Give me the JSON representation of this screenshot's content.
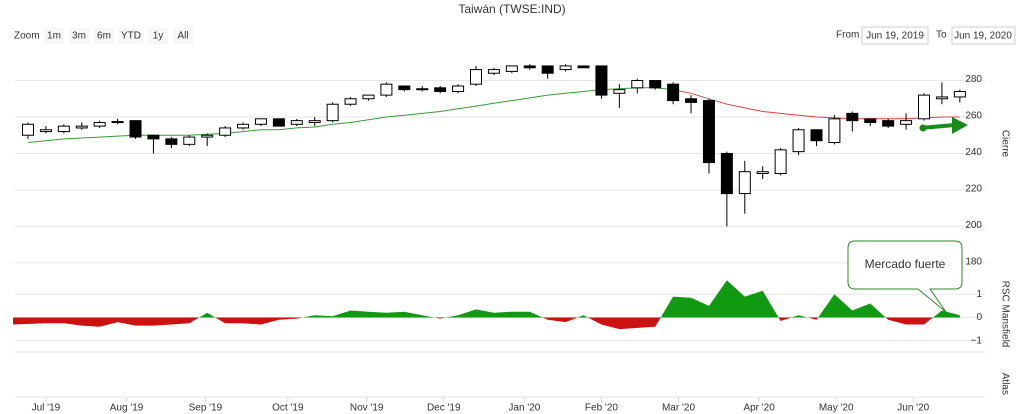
{
  "header": {
    "title": "Taiwán (TWSE:IND)",
    "zoom_label": "Zoom",
    "zoom_buttons": [
      "1m",
      "3m",
      "6m",
      "YTD",
      "1y",
      "All"
    ],
    "from_label": "From",
    "from_value": "Jun 19, 2019",
    "to_label": "To",
    "to_value": "Jun 19, 2020"
  },
  "chart_data": [
    {
      "type": "candlestick",
      "y_label": "Cierre",
      "up_color": "#ffffff",
      "down_color": "#000000",
      "open": [
        250,
        252,
        252,
        254,
        255,
        257,
        258,
        250,
        248,
        245,
        249,
        250,
        254,
        256,
        259,
        256,
        257,
        258,
        267,
        270,
        272,
        277,
        275.5,
        276,
        274,
        278,
        284,
        285,
        288,
        288,
        286,
        288,
        288,
        273,
        276,
        280,
        278,
        270,
        269,
        240,
        218,
        229,
        229,
        241,
        253,
        246,
        262,
        259,
        258,
        256,
        259,
        270,
        271
      ],
      "high": [
        257,
        255,
        256,
        257,
        258,
        259,
        258,
        250,
        249,
        250,
        251,
        255,
        257,
        259,
        259,
        259,
        260,
        268,
        271,
        272,
        279,
        277,
        277,
        277,
        278,
        288,
        287,
        288,
        289,
        288,
        289,
        288,
        288,
        278,
        281,
        280,
        279,
        272,
        270,
        241,
        236,
        233,
        243,
        254,
        253,
        261,
        263,
        259,
        259,
        262,
        273,
        279,
        275
      ],
      "low": [
        248,
        251,
        251,
        253,
        254,
        256,
        248,
        240,
        243,
        244,
        244,
        249,
        253,
        255,
        255,
        255,
        255,
        257,
        266,
        269,
        271,
        274,
        274,
        273,
        273,
        277,
        283,
        284,
        286,
        281,
        285,
        287,
        270,
        265,
        273,
        275,
        267,
        262,
        229,
        200,
        207,
        226,
        228,
        239,
        244,
        245,
        252,
        255,
        254,
        253,
        258,
        267,
        268
      ],
      "close": [
        256,
        253,
        255,
        255,
        257,
        257.5,
        249,
        248,
        245,
        249,
        250,
        254,
        256,
        259,
        255,
        258,
        258,
        267,
        270,
        272,
        278,
        275,
        275,
        274,
        277,
        286,
        286,
        288,
        287,
        284,
        288,
        287,
        272,
        275,
        280,
        276,
        269,
        268,
        235,
        218,
        230,
        230,
        242,
        253,
        247,
        259,
        258,
        257,
        255,
        258,
        272,
        271,
        274
      ],
      "overlays": [
        {
          "color": "#3a9a3a",
          "values": [
            246,
            247,
            248,
            248.5,
            249,
            249.5,
            250,
            250,
            250,
            250,
            250.5,
            251,
            252,
            253,
            253,
            254,
            254.5,
            256,
            257,
            258.5,
            260,
            261,
            262,
            263,
            264.5,
            266,
            267.5,
            269,
            270.5,
            272,
            273,
            274,
            275,
            275.5,
            276,
            276,
            275,
            null,
            null,
            null,
            null,
            null,
            null,
            null,
            null,
            null,
            null,
            null,
            null,
            null,
            null,
            null,
            null
          ]
        },
        {
          "color": "#e04040",
          "values": [
            null,
            null,
            null,
            null,
            null,
            null,
            null,
            null,
            null,
            null,
            null,
            null,
            null,
            null,
            null,
            null,
            null,
            null,
            null,
            null,
            null,
            null,
            null,
            null,
            null,
            null,
            null,
            null,
            null,
            null,
            null,
            null,
            null,
            null,
            null,
            null,
            275,
            273,
            270,
            267,
            265,
            263,
            262,
            261,
            260,
            259.5,
            259,
            259,
            259,
            259,
            259.5,
            260,
            260
          ]
        }
      ],
      "ylim": [
        175,
        294
      ],
      "yticks": [
        180,
        200,
        220,
        240,
        260,
        280
      ],
      "grid": true,
      "xticks": [
        {
          "value": 1,
          "label": "Jul '19"
        },
        {
          "value": 5.5,
          "label": "Aug '19"
        },
        {
          "value": 9.9,
          "label": "Sep '19"
        },
        {
          "value": 14.5,
          "label": "Oct '19"
        },
        {
          "value": 18.9,
          "label": "Nov '19"
        },
        {
          "value": 23.2,
          "label": "Dec '19"
        },
        {
          "value": 27.7,
          "label": "Jan '20"
        },
        {
          "value": 32,
          "label": "Feb '20"
        },
        {
          "value": 36.3,
          "label": "Mar '20"
        },
        {
          "value": 40.8,
          "label": "Apr '20"
        },
        {
          "value": 45.1,
          "label": "May '20"
        },
        {
          "value": 49.4,
          "label": "Jun '20"
        }
      ]
    },
    {
      "type": "area",
      "y_label": "RSC Mansfield",
      "positive_color": "#119911",
      "negative_color": "#cc1111",
      "values": [
        -0.3,
        -0.25,
        -0.25,
        -0.35,
        -0.4,
        -0.2,
        -0.35,
        -0.35,
        -0.3,
        -0.25,
        0.2,
        -0.25,
        -0.25,
        -0.3,
        -0.1,
        -0.05,
        0.1,
        0.05,
        0.3,
        0.25,
        0.2,
        0.25,
        0.1,
        -0.05,
        0.1,
        0.35,
        0.2,
        0.25,
        0.25,
        -0.1,
        -0.2,
        0.1,
        -0.3,
        -0.5,
        -0.45,
        -0.4,
        0.9,
        0.85,
        0.5,
        1.6,
        0.9,
        1.15,
        -0.15,
        0.1,
        -0.1,
        1.0,
        0.3,
        0.6,
        -0.1,
        -0.3,
        -0.3,
        0.3,
        0.1
      ],
      "ylim": [
        -1.4,
        1.7
      ],
      "yticks": [
        1,
        0,
        {
          "value": -1,
          "label": "−1"
        }
      ],
      "annotation": "Mercado fuerte"
    },
    {
      "type": "line",
      "y_label": "Atlas"
    }
  ]
}
